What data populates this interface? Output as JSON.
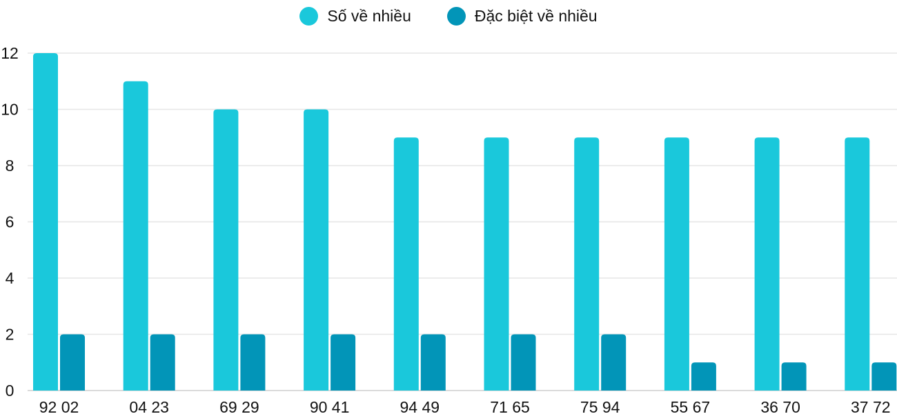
{
  "chart_data": {
    "type": "bar",
    "title": "",
    "xlabel": "",
    "ylabel": "",
    "categories": [
      "92 02",
      "04 23",
      "69 29",
      "90 41",
      "94 49",
      "71 65",
      "75 94",
      "55 67",
      "36 70",
      "37 72"
    ],
    "series": [
      {
        "name": "Số về nhiều",
        "color": "#1ac8db",
        "values": [
          12,
          11,
          10,
          10,
          9,
          9,
          9,
          9,
          9,
          9
        ]
      },
      {
        "name": "Đặc biệt về nhiều",
        "color": "#0295b8",
        "values": [
          2,
          2,
          2,
          2,
          2,
          2,
          2,
          1,
          1,
          1
        ]
      }
    ],
    "ylim": [
      0,
      12
    ],
    "yticks": [
      0,
      2,
      4,
      6,
      8,
      10,
      12
    ],
    "grid": true,
    "legend": "top-center"
  }
}
